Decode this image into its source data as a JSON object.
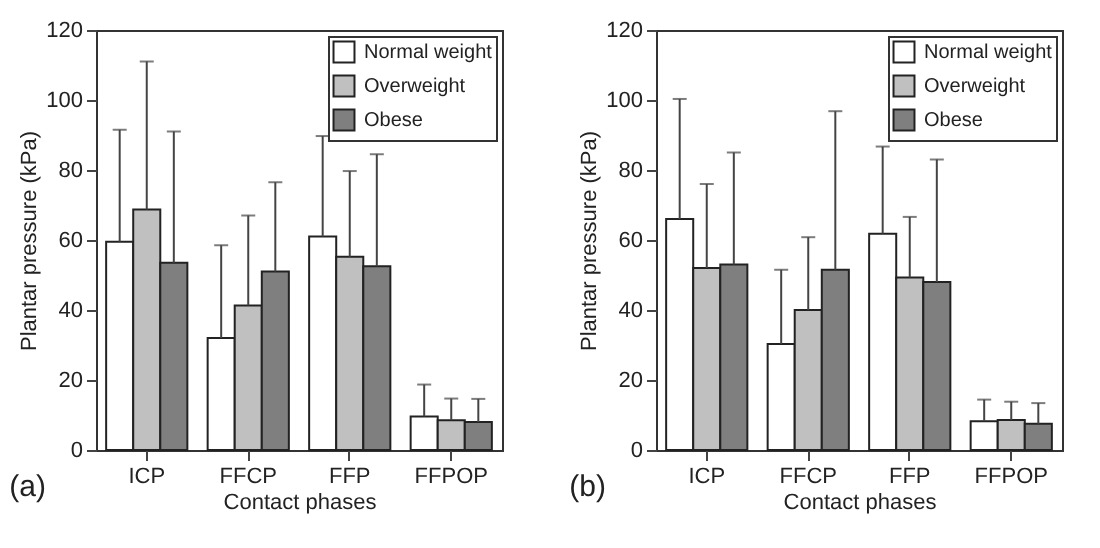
{
  "chart_data": [
    {
      "type": "bar",
      "xlabel": "Contact phases",
      "ylabel": "Plantar pressure (kPa)",
      "annotations": [
        "(a)"
      ],
      "legend": "top right",
      "categories": [
        "ICP",
        "FFCP",
        "FFP",
        "FFPOP"
      ],
      "ylim": [
        0,
        120
      ],
      "yticks": [
        0,
        20,
        40,
        60,
        80,
        100,
        120
      ],
      "series": [
        {
          "name": "Normal weight",
          "color": "#ffffff",
          "values": [
            59.5,
            32,
            61,
            9.6
          ],
          "errors": [
            [
              59.5,
              91.5
            ],
            [
              32,
              58.5
            ],
            [
              61,
              89.7
            ],
            [
              9.6,
              18.7
            ]
          ]
        },
        {
          "name": "Overweight",
          "color": "#c0c0c0",
          "values": [
            68.7,
            41.3,
            55.2,
            8.5
          ],
          "errors": [
            [
              68.7,
              111
            ],
            [
              41.3,
              67
            ],
            [
              55.2,
              79.7
            ],
            [
              8.5,
              14.7
            ]
          ]
        },
        {
          "name": "Obese",
          "color": "#7f7f7f",
          "values": [
            53.5,
            51,
            52.5,
            8
          ],
          "errors": [
            [
              53.5,
              91
            ],
            [
              51,
              76.5
            ],
            [
              52.5,
              84.5
            ],
            [
              8,
              14.6
            ]
          ]
        }
      ]
    },
    {
      "type": "bar",
      "xlabel": "Contact phases",
      "ylabel": "Plantar pressure (kPa)",
      "annotations": [
        "(b)"
      ],
      "legend": "top right",
      "categories": [
        "ICP",
        "FFCP",
        "FFP",
        "FFPOP"
      ],
      "ylim": [
        0,
        120
      ],
      "yticks": [
        0,
        20,
        40,
        60,
        80,
        100,
        120
      ],
      "series": [
        {
          "name": "Normal weight",
          "color": "#ffffff",
          "values": [
            66,
            30.3,
            61.8,
            8.2
          ],
          "errors": [
            [
              66,
              100.3
            ],
            [
              30.3,
              51.5
            ],
            [
              61.8,
              86.7
            ],
            [
              8.2,
              14.4
            ]
          ]
        },
        {
          "name": "Overweight",
          "color": "#c0c0c0",
          "values": [
            52,
            40,
            49.3,
            8.6
          ],
          "errors": [
            [
              52,
              76
            ],
            [
              40,
              60.8
            ],
            [
              49.3,
              66.6
            ],
            [
              8.6,
              13.8
            ]
          ]
        },
        {
          "name": "Obese",
          "color": "#7f7f7f",
          "values": [
            53,
            51.5,
            48,
            7.5
          ],
          "errors": [
            [
              53,
              85
            ],
            [
              51.5,
              96.8
            ],
            [
              48,
              83
            ],
            [
              7.5,
              13.4
            ]
          ]
        }
      ]
    }
  ]
}
